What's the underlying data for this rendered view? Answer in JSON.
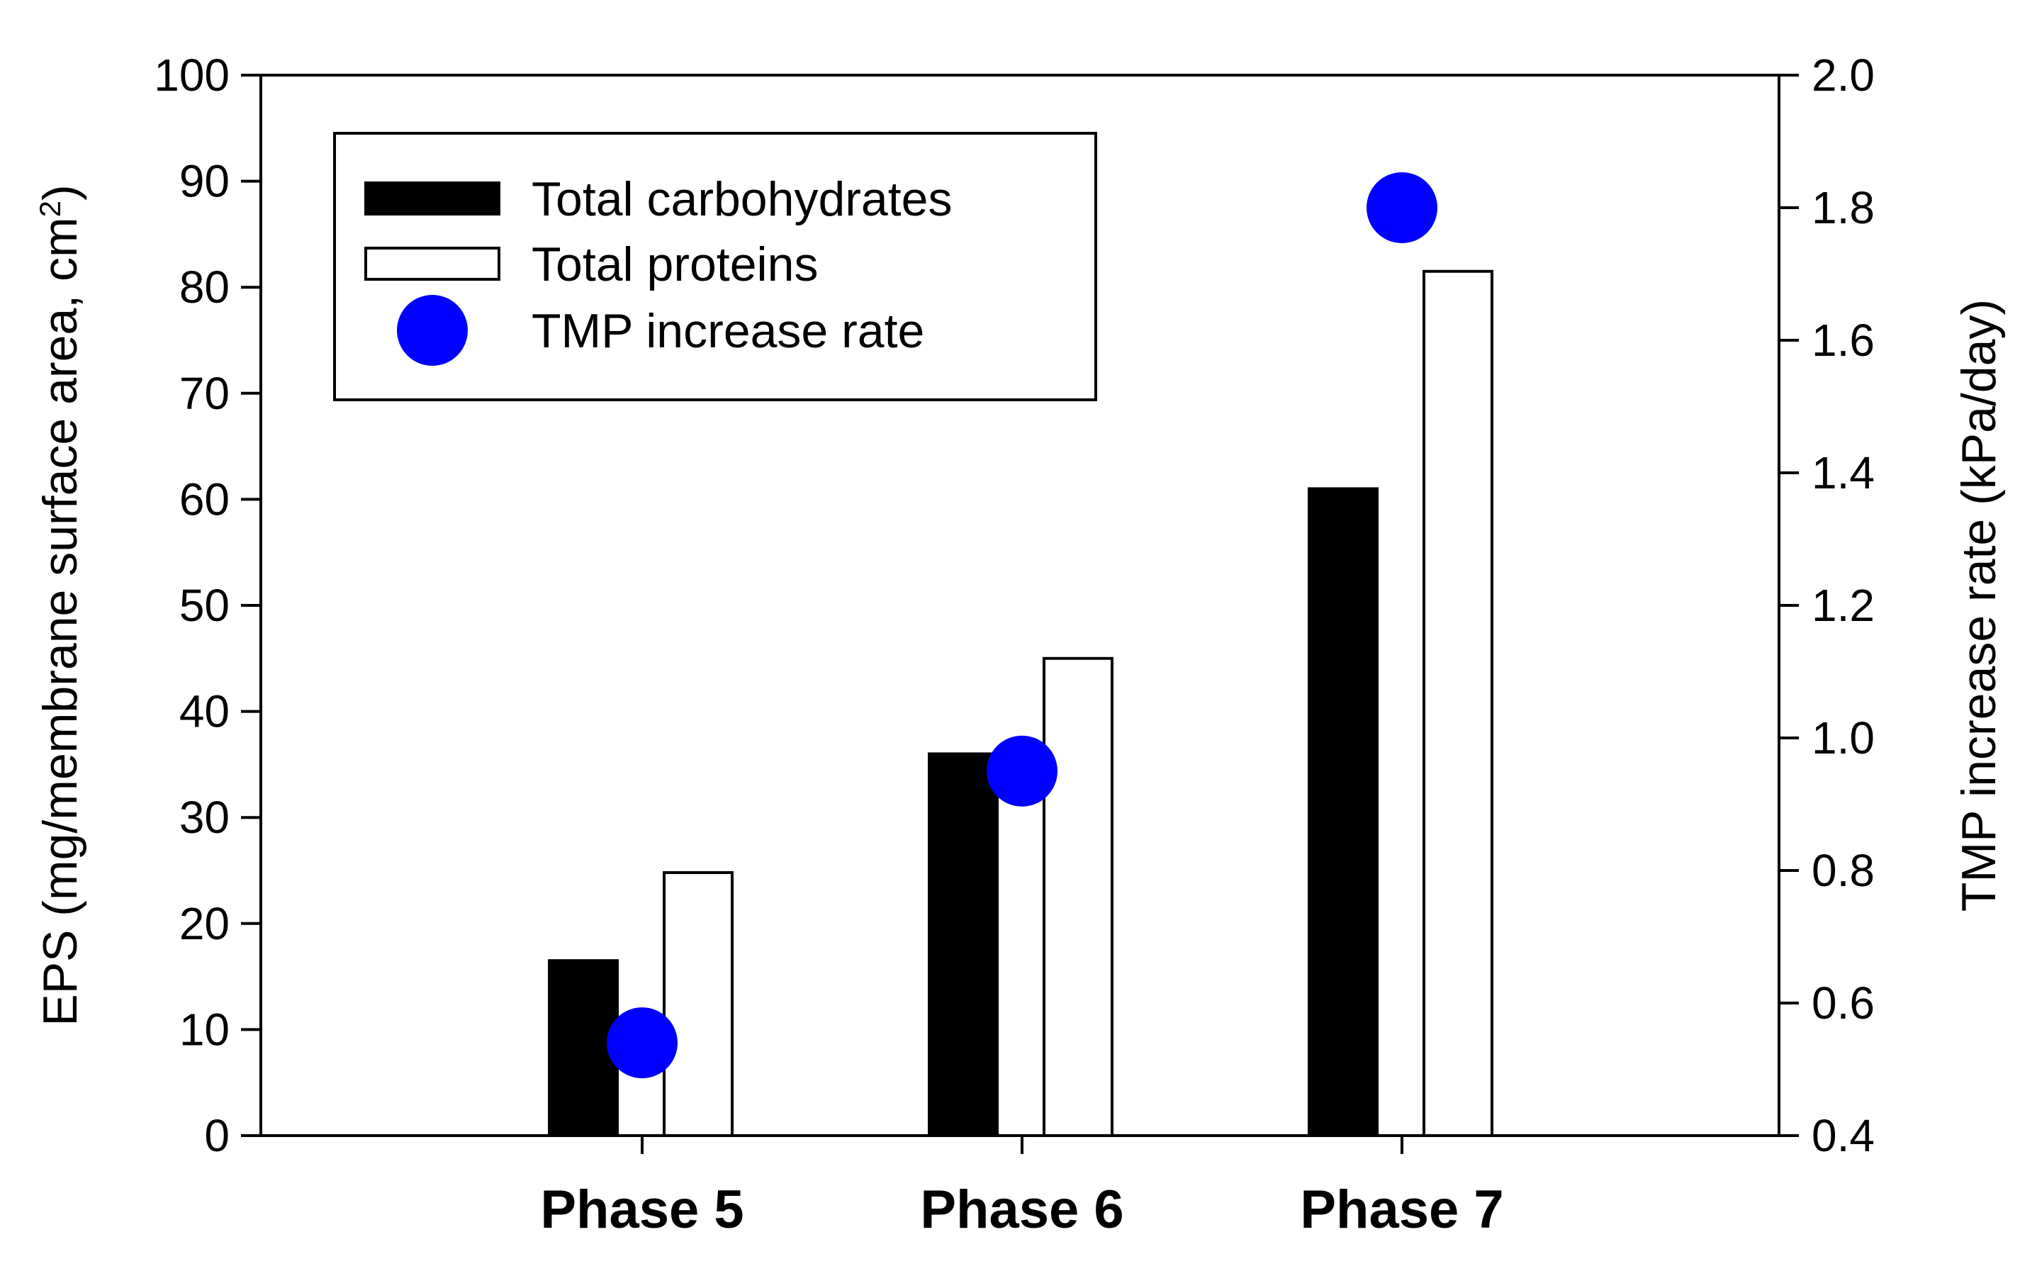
{
  "chart_data": {
    "type": "bar",
    "categories": [
      "Phase 5",
      "Phase 6",
      "Phase 7"
    ],
    "series": [
      {
        "name": "Total carbohydrates",
        "kind": "bar",
        "axis": "left",
        "values": [
          16.5,
          36,
          61
        ],
        "color": "#000000"
      },
      {
        "name": "Total proteins",
        "kind": "bar",
        "axis": "left",
        "values": [
          24.8,
          45,
          81.5
        ],
        "color": "#ffffff"
      },
      {
        "name": "TMP increase rate",
        "kind": "scatter",
        "axis": "right",
        "values": [
          0.54,
          0.95,
          1.8
        ],
        "color": "#0000ff"
      }
    ],
    "y_left": {
      "label_main": "EPS (mg/membrane surface area, cm",
      "label_sup": "2",
      "label_close": ")",
      "ylim": [
        0,
        100
      ],
      "ticks": [
        "0",
        "10",
        "20",
        "30",
        "40",
        "50",
        "60",
        "70",
        "80",
        "90",
        "100"
      ]
    },
    "y_right": {
      "label": "TMP increase rate (kPa/day)",
      "ylim": [
        0.4,
        2.0
      ],
      "ticks": [
        "0.4",
        "0.6",
        "0.8",
        "1.0",
        "1.2",
        "1.4",
        "1.6",
        "1.8",
        "2.0"
      ]
    },
    "xlabel": "",
    "title": "",
    "legend_position": "top-left",
    "grid": false
  }
}
